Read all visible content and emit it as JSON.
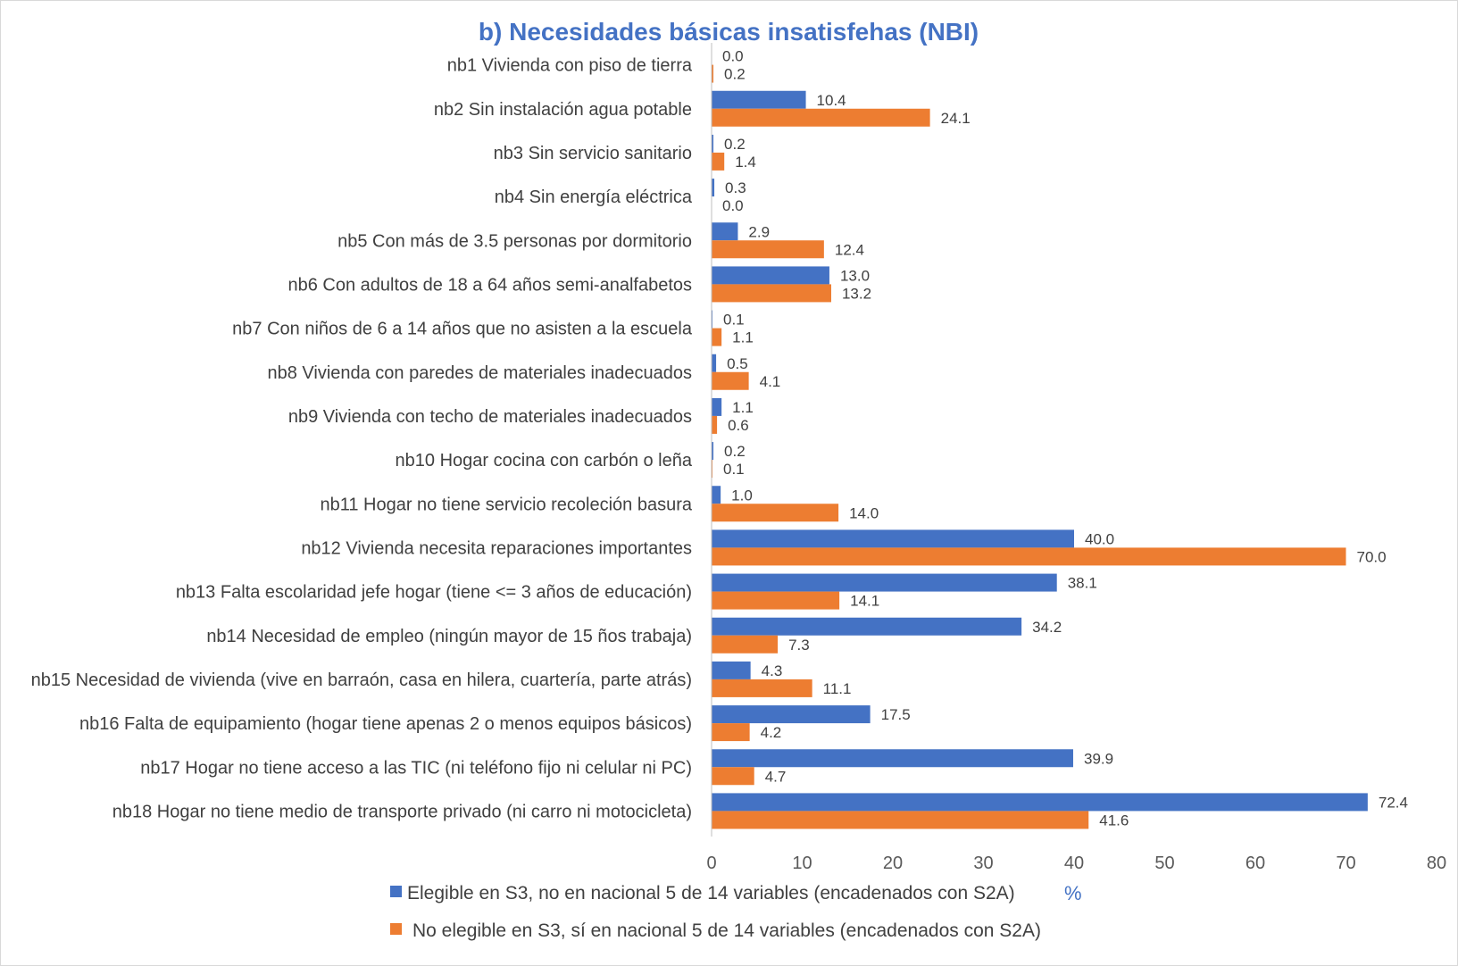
{
  "chart_data": {
    "type": "bar",
    "orientation": "horizontal",
    "title": "b) Necesidades básicas insatisfehas (NBI)",
    "xlabel": "%",
    "xlim": [
      0,
      80
    ],
    "xticks": [
      0,
      10,
      20,
      30,
      40,
      50,
      60,
      70,
      80
    ],
    "categories": [
      "nb1 Vivienda con piso de tierra",
      "nb2 Sin instalación agua potable",
      "nb3 Sin servicio sanitario",
      "nb4 Sin energía eléctrica",
      "nb5 Con más de 3.5 personas por dormitorio",
      "nb6 Con adultos de 18 a 64 años semi-analfabetos",
      "nb7 Con niños de 6 a 14 años que no asisten a la escuela",
      "nb8 Vivienda con paredes de materiales inadecuados",
      "nb9 Vivienda con techo de materiales inadecuados",
      "nb10 Hogar cocina con carbón o leña",
      "nb11 Hogar no tiene servicio recoleción basura",
      "nb12 Vivienda necesita reparaciones importantes",
      "nb13 Falta escolaridad jefe hogar (tiene <= 3 años de educación)",
      "nb14 Necesidad de empleo (ningún mayor de 15 ños trabaja)",
      "nb15 Necesidad de vivienda (vive en barraón, casa en hilera, cuartería, parte atrás)",
      "nb16 Falta de equipamiento (hogar tiene apenas 2 o menos equipos básicos)",
      "nb17 Hogar no tiene acceso a las TIC (ni teléfono fijo ni celular ni PC)",
      "nb18 Hogar no tiene medio de transporte privado (ni carro ni motocicleta)"
    ],
    "series": [
      {
        "name": "Elegible en S3, no en nacional 5 de 14 variables (encadenados con S2A)",
        "color": "#4472c4",
        "values": [
          0.0,
          10.4,
          0.2,
          0.3,
          2.9,
          13.0,
          0.1,
          0.5,
          1.1,
          0.2,
          1.0,
          40.0,
          38.1,
          34.2,
          4.3,
          17.5,
          39.9,
          72.4
        ]
      },
      {
        "name": "No elegible en S3, sí en nacional 5 de 14 variables (encadenados con S2A)",
        "color": "#ed7d31",
        "values": [
          0.2,
          24.1,
          1.4,
          0.0,
          12.4,
          13.2,
          1.1,
          4.1,
          0.6,
          0.1,
          14.0,
          70.0,
          14.1,
          7.3,
          11.1,
          4.2,
          4.7,
          41.6
        ]
      }
    ],
    "legend_position": "bottom",
    "grid": false
  }
}
